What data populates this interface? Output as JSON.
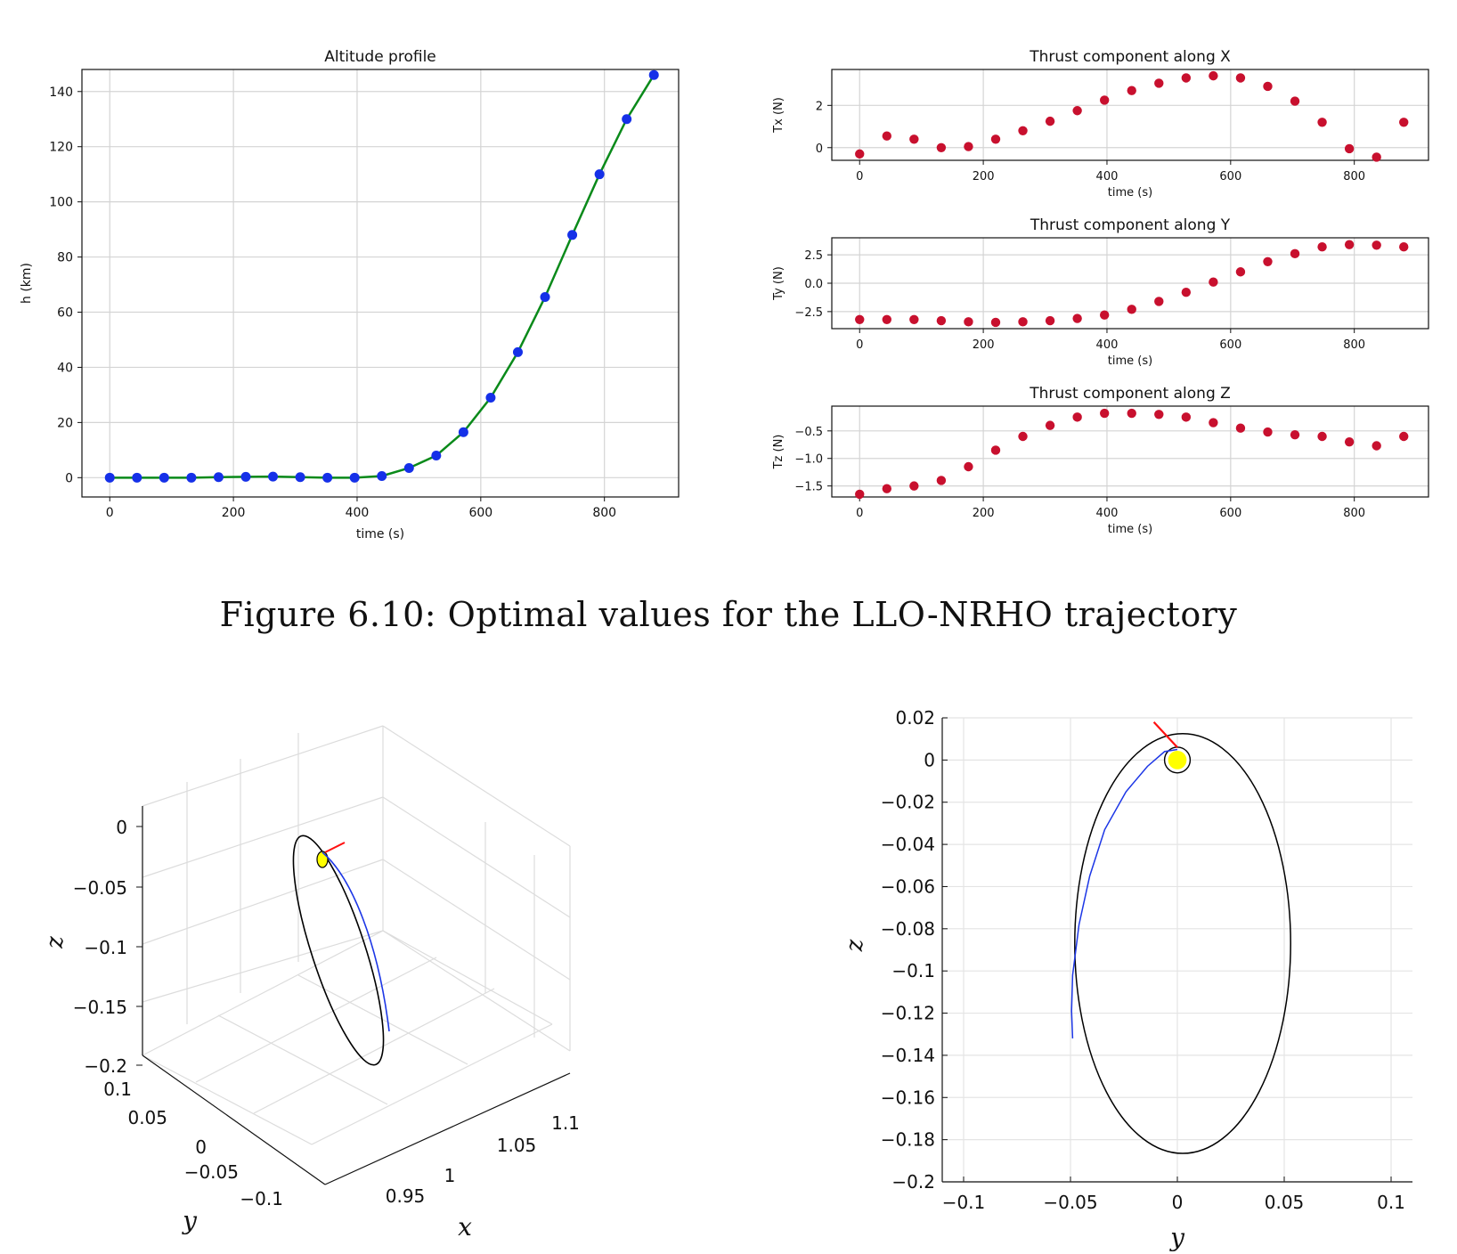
{
  "caption": "Figure 6.10: Optimal values for the LLO-NRHO trajectory",
  "colors": {
    "altitude_line": "#0a8a1a",
    "altitude_marker": "#1530e8",
    "thrust_marker": "#c8102e",
    "grid": "#d4d4d4",
    "moon_fill": "#ffff00",
    "transfer_arc": "#1c36e6",
    "thrust_arrow": "#ff1010",
    "orbit": "#000000"
  },
  "chart_data": [
    {
      "id": "altitude",
      "type": "line",
      "title": "Altitude profile",
      "xlabel": "time (s)",
      "ylabel": "h (km)",
      "xlim": [
        -45,
        920
      ],
      "ylim": [
        -7,
        148
      ],
      "xticks": [
        0,
        200,
        400,
        600,
        800
      ],
      "yticks": [
        0,
        20,
        40,
        60,
        80,
        100,
        120,
        140
      ],
      "x": [
        0,
        44,
        88,
        132,
        176,
        220,
        264,
        308,
        352,
        396,
        440,
        484,
        528,
        572,
        616,
        660,
        704,
        748,
        792,
        836,
        880
      ],
      "y": [
        0,
        0,
        0,
        0,
        0.2,
        0.3,
        0.4,
        0.2,
        0,
        0,
        0.6,
        3.5,
        8,
        16.5,
        29,
        45.5,
        65.5,
        88,
        110,
        130,
        146
      ]
    },
    {
      "id": "tx",
      "type": "scatter",
      "title": "Thrust component along X",
      "xlabel": "time (s)",
      "ylabel": "Tx (N)",
      "xlim": [
        -45,
        920
      ],
      "ylim": [
        -0.6,
        3.7
      ],
      "xticks": [
        0,
        200,
        400,
        600,
        800
      ],
      "yticks": [
        0,
        2
      ],
      "x": [
        0,
        44,
        88,
        132,
        176,
        220,
        264,
        308,
        352,
        396,
        440,
        484,
        528,
        572,
        616,
        660,
        704,
        748,
        792,
        836,
        880
      ],
      "y": [
        -0.3,
        0.55,
        0.4,
        0.0,
        0.05,
        0.4,
        0.8,
        1.25,
        1.75,
        2.25,
        2.7,
        3.05,
        3.3,
        3.4,
        3.3,
        2.9,
        2.2,
        1.2,
        -0.05,
        -0.45,
        1.2
      ]
    },
    {
      "id": "ty",
      "type": "scatter",
      "title": "Thrust component along Y",
      "xlabel": "time (s)",
      "ylabel": "Ty (N)",
      "xlim": [
        -45,
        920
      ],
      "ylim": [
        -4.0,
        4.0
      ],
      "xticks": [
        0,
        200,
        400,
        600,
        800
      ],
      "yticks": [
        2.5,
        0.0,
        -2.5
      ],
      "ytick_labels": [
        "2.5",
        "0.0",
        "−2.5"
      ],
      "x": [
        0,
        44,
        88,
        132,
        176,
        220,
        264,
        308,
        352,
        396,
        440,
        484,
        528,
        572,
        616,
        660,
        704,
        748,
        792,
        836,
        880
      ],
      "y": [
        -3.2,
        -3.2,
        -3.2,
        -3.3,
        -3.4,
        -3.45,
        -3.4,
        -3.3,
        -3.1,
        -2.8,
        -2.3,
        -1.6,
        -0.8,
        0.1,
        1.0,
        1.9,
        2.6,
        3.2,
        3.4,
        3.35,
        3.2
      ]
    },
    {
      "id": "tz",
      "type": "scatter",
      "title": "Thrust component along Z",
      "xlabel": "time (s)",
      "ylabel": "Tz (N)",
      "xlim": [
        -45,
        920
      ],
      "ylim": [
        -1.7,
        -0.05
      ],
      "xticks": [
        0,
        200,
        400,
        600,
        800
      ],
      "yticks": [
        -0.5,
        -1.0,
        -1.5
      ],
      "ytick_labels": [
        "−0.5",
        "−1.0",
        "−1.5"
      ],
      "x": [
        0,
        44,
        88,
        132,
        176,
        220,
        264,
        308,
        352,
        396,
        440,
        484,
        528,
        572,
        616,
        660,
        704,
        748,
        792,
        836,
        880
      ],
      "y": [
        -1.65,
        -1.55,
        -1.5,
        -1.4,
        -1.15,
        -0.85,
        -0.6,
        -0.4,
        -0.25,
        -0.18,
        -0.18,
        -0.2,
        -0.25,
        -0.35,
        -0.45,
        -0.52,
        -0.57,
        -0.6,
        -0.7,
        -0.77,
        -0.6
      ]
    },
    {
      "id": "orbit3d",
      "type": "line",
      "title": "",
      "xlabel": "x",
      "ylabel": "y",
      "zlabel": "z",
      "zticks": [
        "0",
        "−0.05",
        "−0.1",
        "−0.15",
        "−0.2"
      ],
      "yticks": [
        "0.1",
        "0.05",
        "0",
        "−0.05",
        "−0.1"
      ],
      "xticks": [
        "0.95",
        "1",
        "1.05",
        "1.1"
      ],
      "series": [
        {
          "name": "NRHO",
          "kind": "closed orbit"
        },
        {
          "name": "transfer arc",
          "kind": "arc"
        },
        {
          "name": "LLO",
          "kind": "small orbit"
        }
      ]
    },
    {
      "id": "orbit_yz",
      "type": "line",
      "title": "",
      "xlabel": "y",
      "ylabel": "z",
      "xlim": [
        -0.11,
        0.11
      ],
      "ylim": [
        -0.2,
        0.02
      ],
      "xticks": [
        -0.1,
        -0.05,
        0,
        0.05,
        0.1
      ],
      "xtick_labels": [
        "−0.1",
        "−0.05",
        "0",
        "0.05",
        "0.1"
      ],
      "yticks": [
        0.02,
        0,
        -0.02,
        -0.04,
        -0.06,
        -0.08,
        -0.1,
        -0.12,
        -0.14,
        -0.16,
        -0.18,
        -0.2
      ],
      "ytick_labels": [
        "0.02",
        "0",
        "−0.02",
        "−0.04",
        "−0.06",
        "−0.08",
        "−0.1",
        "−0.12",
        "−0.14",
        "−0.16",
        "−0.18",
        "−0.2"
      ],
      "nrho": {
        "center_y": 0.0025,
        "center_z": -0.087,
        "semi_y": 0.0505,
        "semi_z": 0.0995
      },
      "moon": {
        "center_y": 0.0,
        "center_z": 0.0,
        "radius": 0.006
      },
      "transfer": {
        "y": [
          0.0,
          -0.006,
          -0.014,
          -0.024,
          -0.034,
          -0.041,
          -0.046,
          -0.049,
          -0.0495,
          -0.049
        ],
        "z": [
          0.005,
          0.004,
          -0.003,
          -0.015,
          -0.033,
          -0.055,
          -0.078,
          -0.102,
          -0.119,
          -0.132
        ]
      },
      "arrow": {
        "y": [
          -0.011,
          0.0
        ],
        "z": [
          0.018,
          0.006
        ]
      }
    }
  ]
}
